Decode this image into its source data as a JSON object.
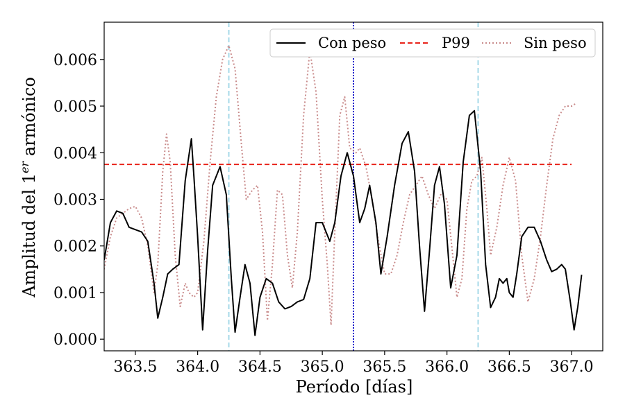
{
  "chart_data": {
    "type": "line",
    "title": "",
    "xlabel": "Período [días]",
    "ylabel_main": "Amplitud del 1",
    "ylabel_sup": "er",
    "ylabel_rest": " armónico",
    "xlim": [
      363.25,
      367.25
    ],
    "ylim": [
      -0.00025,
      0.0068
    ],
    "x_ticks": [
      363.5,
      364.0,
      364.5,
      365.0,
      365.5,
      366.0,
      366.5,
      367.0
    ],
    "x_tick_labels": [
      "363.5",
      "364.0",
      "364.5",
      "365.0",
      "365.5",
      "366.0",
      "366.5",
      "367.0"
    ],
    "y_ticks": [
      0.0,
      0.001,
      0.002,
      0.003,
      0.004,
      0.005,
      0.006
    ],
    "y_tick_labels": [
      "0.000",
      "0.001",
      "0.002",
      "0.003",
      "0.004",
      "0.005",
      "0.006"
    ],
    "grid": false,
    "legend_position": "top-right",
    "series": [
      {
        "name": "Con peso",
        "style": "solid",
        "color": "#000000",
        "points": [
          [
            363.25,
            0.0017
          ],
          [
            363.3,
            0.0025
          ],
          [
            363.35,
            0.00275
          ],
          [
            363.4,
            0.0027
          ],
          [
            363.45,
            0.0024
          ],
          [
            363.5,
            0.00235
          ],
          [
            363.55,
            0.0023
          ],
          [
            363.6,
            0.0021
          ],
          [
            363.65,
            0.0012
          ],
          [
            363.68,
            0.00045
          ],
          [
            363.72,
            0.0009
          ],
          [
            363.76,
            0.0014
          ],
          [
            363.8,
            0.0015
          ],
          [
            363.85,
            0.0016
          ],
          [
            363.9,
            0.0034
          ],
          [
            363.95,
            0.0043
          ],
          [
            363.97,
            0.0035
          ],
          [
            364.0,
            0.0022
          ],
          [
            364.04,
            0.0002
          ],
          [
            364.08,
            0.0019
          ],
          [
            364.12,
            0.0033
          ],
          [
            364.18,
            0.0037
          ],
          [
            364.23,
            0.0031
          ],
          [
            364.27,
            0.0013
          ],
          [
            364.3,
            0.00015
          ],
          [
            364.34,
            0.0009
          ],
          [
            364.38,
            0.0016
          ],
          [
            364.42,
            0.0012
          ],
          [
            364.46,
            8e-05
          ],
          [
            364.5,
            0.0009
          ],
          [
            364.55,
            0.0013
          ],
          [
            364.6,
            0.0012
          ],
          [
            364.65,
            0.0008
          ],
          [
            364.7,
            0.00065
          ],
          [
            364.75,
            0.0007
          ],
          [
            364.8,
            0.0008
          ],
          [
            364.85,
            0.00085
          ],
          [
            364.9,
            0.0013
          ],
          [
            364.95,
            0.0025
          ],
          [
            365.0,
            0.0025
          ],
          [
            365.06,
            0.0021
          ],
          [
            365.1,
            0.0025
          ],
          [
            365.15,
            0.0035
          ],
          [
            365.2,
            0.004
          ],
          [
            365.25,
            0.0035
          ],
          [
            365.3,
            0.0025
          ],
          [
            365.34,
            0.0028
          ],
          [
            365.38,
            0.0033
          ],
          [
            365.43,
            0.0025
          ],
          [
            365.47,
            0.0014
          ],
          [
            365.52,
            0.0022
          ],
          [
            365.58,
            0.0033
          ],
          [
            365.64,
            0.0042
          ],
          [
            365.69,
            0.00445
          ],
          [
            365.74,
            0.0036
          ],
          [
            365.78,
            0.002
          ],
          [
            365.82,
            0.0006
          ],
          [
            365.86,
            0.0019
          ],
          [
            365.9,
            0.0033
          ],
          [
            365.94,
            0.0037
          ],
          [
            365.98,
            0.0029
          ],
          [
            366.03,
            0.0011
          ],
          [
            366.08,
            0.0018
          ],
          [
            366.13,
            0.0038
          ],
          [
            366.18,
            0.0048
          ],
          [
            366.22,
            0.0049
          ],
          [
            366.27,
            0.0036
          ],
          [
            366.31,
            0.0016
          ],
          [
            366.35,
            0.00068
          ],
          [
            366.39,
            0.0009
          ],
          [
            366.42,
            0.0013
          ],
          [
            366.45,
            0.0012
          ],
          [
            366.48,
            0.0013
          ],
          [
            366.5,
            0.001
          ],
          [
            366.53,
            0.0009
          ],
          [
            366.56,
            0.0014
          ],
          [
            366.6,
            0.0022
          ],
          [
            366.65,
            0.0024
          ],
          [
            366.7,
            0.0024
          ],
          [
            366.75,
            0.0021
          ],
          [
            366.8,
            0.0017
          ],
          [
            366.84,
            0.00145
          ],
          [
            366.88,
            0.0015
          ],
          [
            366.92,
            0.0016
          ],
          [
            366.95,
            0.0015
          ],
          [
            366.99,
            0.0008
          ],
          [
            367.02,
            0.0002
          ],
          [
            367.05,
            0.0007
          ],
          [
            367.08,
            0.00138
          ]
        ]
      },
      {
        "name": "P99",
        "style": "dashed",
        "color": "#e8231a",
        "points": [
          [
            363.25,
            0.00375
          ],
          [
            367.0,
            0.00375
          ]
        ]
      },
      {
        "name": "Sin peso",
        "style": "dotted",
        "color": "#c98b8b",
        "points": [
          [
            363.25,
            0.0015
          ],
          [
            363.3,
            0.0022
          ],
          [
            363.35,
            0.0026
          ],
          [
            363.4,
            0.0027
          ],
          [
            363.45,
            0.0028
          ],
          [
            363.5,
            0.00285
          ],
          [
            363.55,
            0.0026
          ],
          [
            363.6,
            0.002
          ],
          [
            363.65,
            0.001
          ],
          [
            363.68,
            0.0016
          ],
          [
            363.72,
            0.0036
          ],
          [
            363.75,
            0.0044
          ],
          [
            363.78,
            0.0038
          ],
          [
            363.82,
            0.0018
          ],
          [
            363.86,
            0.0007
          ],
          [
            363.9,
            0.0012
          ],
          [
            363.93,
            0.001
          ],
          [
            363.97,
            0.0009
          ],
          [
            364.0,
            0.001
          ],
          [
            364.05,
            0.0021
          ],
          [
            364.1,
            0.0038
          ],
          [
            364.15,
            0.0052
          ],
          [
            364.2,
            0.006
          ],
          [
            364.25,
            0.0063
          ],
          [
            364.3,
            0.0058
          ],
          [
            364.35,
            0.0042
          ],
          [
            364.39,
            0.003
          ],
          [
            364.44,
            0.0032
          ],
          [
            364.48,
            0.0033
          ],
          [
            364.52,
            0.0023
          ],
          [
            364.56,
            0.0004
          ],
          [
            364.6,
            0.0016
          ],
          [
            364.64,
            0.0032
          ],
          [
            364.68,
            0.0031
          ],
          [
            364.72,
            0.0018
          ],
          [
            364.76,
            0.0011
          ],
          [
            364.8,
            0.0023
          ],
          [
            364.85,
            0.0048
          ],
          [
            364.9,
            0.0062
          ],
          [
            364.95,
            0.0053
          ],
          [
            365.0,
            0.003
          ],
          [
            365.04,
            0.0016
          ],
          [
            365.07,
            0.0003
          ],
          [
            365.1,
            0.0023
          ],
          [
            365.14,
            0.0048
          ],
          [
            365.18,
            0.0052
          ],
          [
            365.22,
            0.0041
          ],
          [
            365.27,
            0.004
          ],
          [
            365.3,
            0.0041
          ],
          [
            365.35,
            0.0037
          ],
          [
            365.4,
            0.003
          ],
          [
            365.45,
            0.0021
          ],
          [
            365.5,
            0.0014
          ],
          [
            365.55,
            0.0014
          ],
          [
            365.6,
            0.0018
          ],
          [
            365.65,
            0.0025
          ],
          [
            365.7,
            0.0031
          ],
          [
            365.75,
            0.0033
          ],
          [
            365.8,
            0.0035
          ],
          [
            365.85,
            0.0031
          ],
          [
            365.9,
            0.0028
          ],
          [
            365.95,
            0.0031
          ],
          [
            366.0,
            0.003
          ],
          [
            366.05,
            0.0017
          ],
          [
            366.08,
            0.0009
          ],
          [
            366.12,
            0.0013
          ],
          [
            366.16,
            0.0028
          ],
          [
            366.2,
            0.0034
          ],
          [
            366.24,
            0.0035
          ],
          [
            366.28,
            0.0039
          ],
          [
            366.32,
            0.0028
          ],
          [
            366.35,
            0.0018
          ],
          [
            366.4,
            0.0024
          ],
          [
            366.45,
            0.0033
          ],
          [
            366.5,
            0.0039
          ],
          [
            366.55,
            0.0034
          ],
          [
            366.6,
            0.0018
          ],
          [
            366.65,
            0.0008
          ],
          [
            366.7,
            0.0013
          ],
          [
            366.75,
            0.0022
          ],
          [
            366.8,
            0.0033
          ],
          [
            366.85,
            0.0043
          ],
          [
            366.9,
            0.0048
          ],
          [
            366.95,
            0.005
          ],
          [
            367.0,
            0.005
          ],
          [
            367.03,
            0.00505
          ]
        ]
      }
    ],
    "vlines": [
      {
        "x": 364.25,
        "style": "dashed",
        "color": "#a6d8e8"
      },
      {
        "x": 365.25,
        "style": "dotted",
        "color": "#1a1acc"
      },
      {
        "x": 366.25,
        "style": "dashed",
        "color": "#a6d8e8"
      }
    ]
  }
}
